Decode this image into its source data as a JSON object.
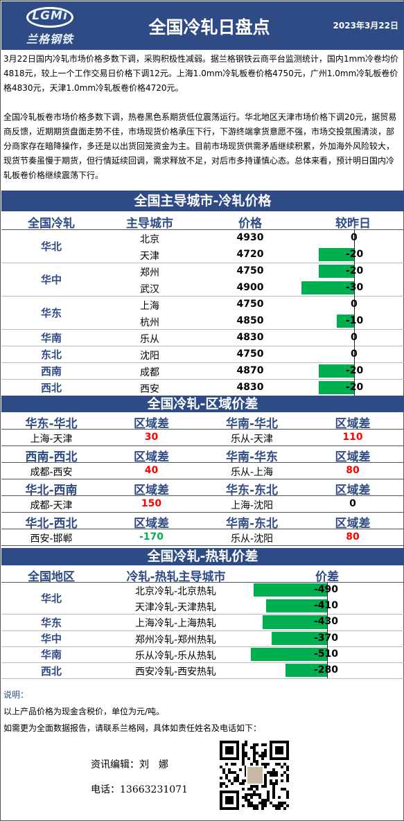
{
  "header": {
    "logo_en": "LGMi",
    "logo_cn": "兰格钢铁",
    "title": "全国冷轧日盘点",
    "date": "2023年3月22日"
  },
  "intro": {
    "p1": "3月22日国内冷轧市场价格多数下调，采购积极性减弱。据兰格钢铁云商平台监测统计，国内1mm冷卷均价4818元，较上一个工作交易日价格下调12元。上海1.0mm冷轧板卷价格4750元，广州1.0mm冷轧板卷价格4830元，天津1.0mm冷轧板卷价格4720元。",
    "p2": "全国冷轧板卷市场价格多数下调，热卷黑色系期货低位震荡运行。华北地区天津市场价格下调20元，据贸易商反馈，近期期货盘面走势不佳，市场现货价格承压下行，下游终端拿货意愿不强，市场交投氛围清淡，部分商家存在暗降操作，多还是以出货回笼资金为主。目前市场现货供需矛盾继续积累，外加海外风险较大，现货节奏虽慢于期货，但行情延续回调，需求释放不足，对后市多持谨慎心态。总体来看，预计明日国内冷轧板卷价格继续震荡下行。"
  },
  "price_section": {
    "title": "全国主导城市-冷轧价格",
    "headers": [
      "全国冷轧",
      "主导城市",
      "价格",
      "较昨日"
    ],
    "regions": [
      "华北",
      "华中",
      "华东",
      "华南",
      "东北",
      "西南",
      "西北"
    ],
    "rows": [
      {
        "city": "北京",
        "price": "4930",
        "change": "0",
        "change_value": 0
      },
      {
        "city": "天津",
        "price": "4720",
        "change": "-20",
        "change_value": -20
      },
      {
        "city": "郑州",
        "price": "4750",
        "change": "-20",
        "change_value": -20
      },
      {
        "city": "武汉",
        "price": "4900",
        "change": "-30",
        "change_value": -30
      },
      {
        "city": "上海",
        "price": "4750",
        "change": "0",
        "change_value": 0
      },
      {
        "city": "杭州",
        "price": "4850",
        "change": "-10",
        "change_value": -10
      },
      {
        "city": "乐从",
        "price": "4830",
        "change": "0",
        "change_value": 0
      },
      {
        "city": "沈阳",
        "price": "4750",
        "change": "0",
        "change_value": 0
      },
      {
        "city": "成都",
        "price": "4870",
        "change": "-20",
        "change_value": -20
      },
      {
        "city": "西安",
        "price": "4830",
        "change": "-20",
        "change_value": -20
      }
    ]
  },
  "spread_section": {
    "title": "全国冷轧-区域价差",
    "diff_label": "区域差",
    "blocks": [
      {
        "left_region": "华东-华北",
        "left_pair": "上海-天津",
        "left_value": "30",
        "right_region": "华南-华北",
        "right_pair": "乐从-天津",
        "right_value": "110"
      },
      {
        "left_region": "西南-西北",
        "left_pair": "成都-西安",
        "left_value": "40",
        "right_region": "华南-华东",
        "right_pair": "乐从-上海",
        "right_value": "80"
      },
      {
        "left_region": "华北-西南",
        "left_pair": "成都-天津",
        "left_value": "150",
        "right_region": "华东-东北",
        "right_pair": "上海-沈阳",
        "right_value": "0"
      },
      {
        "left_region": "华北-西北",
        "left_pair": "西安-邯郸",
        "left_value": "-170",
        "right_region": "华南-东北",
        "right_pair": "乐从-沈阳",
        "right_value": "80"
      }
    ]
  },
  "hot_section": {
    "title": "全国冷轧-热轧价差",
    "headers": [
      "全国地区",
      "冷轧-热轧主导城市",
      "价差"
    ],
    "regions": [
      "华北",
      "华东",
      "华中",
      "华南",
      "西北"
    ],
    "rows": [
      {
        "pair": "北京冷轧-北京热轧",
        "value": "-490",
        "num": -490
      },
      {
        "pair": "天津冷轧-天津热轧",
        "value": "-410",
        "num": -410
      },
      {
        "pair": "上海冷轧-上海热轧",
        "value": "-430",
        "num": -430
      },
      {
        "pair": "郑州冷轧-郑州热轧",
        "value": "-370",
        "num": -370
      },
      {
        "pair": "乐从冷轧-乐从热轧",
        "value": "-510",
        "num": -510
      },
      {
        "pair": "西安冷轧-西安热轧",
        "value": "-280",
        "num": -280
      }
    ]
  },
  "notes": {
    "label": "说明：",
    "line1": "以上产品价格为现金含税价，单位为元/吨。",
    "line2": "如需更为全面数据报告，请联系兰格网，具体如责任姓名及电话如下："
  },
  "contact": {
    "editor": "资讯编辑：刘　娜",
    "phone": "电话：13663231071"
  },
  "colors": {
    "header": "#2f4b85",
    "bar": "#00b050",
    "negative": "#ff0000",
    "positive": "#00b050"
  }
}
